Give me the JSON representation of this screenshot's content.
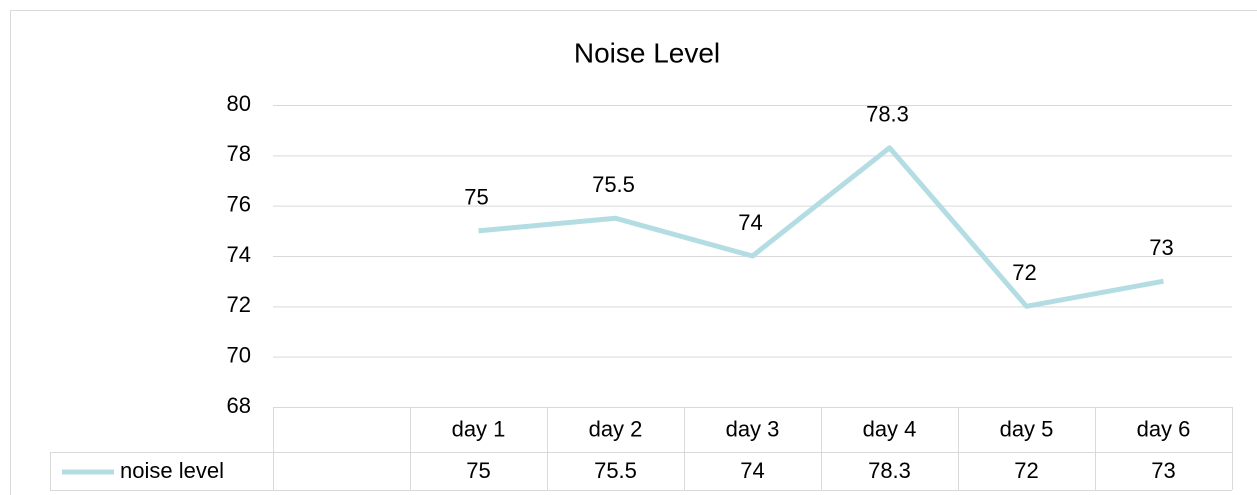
{
  "chart_data": {
    "type": "line",
    "title": "Noise Level",
    "categories": [
      null,
      "day 1",
      "day 2",
      "day 3",
      "day 4",
      "day 5",
      "day 6"
    ],
    "series": [
      {
        "name": "noise level",
        "color": "#b4dde3",
        "values": [
          null,
          75,
          75.5,
          74,
          78.3,
          72,
          73
        ]
      }
    ],
    "ylim": [
      68,
      80
    ],
    "yticks": [
      68,
      70,
      72,
      74,
      76,
      78,
      80
    ],
    "grid": true,
    "data_labels": true,
    "data_table": true
  }
}
